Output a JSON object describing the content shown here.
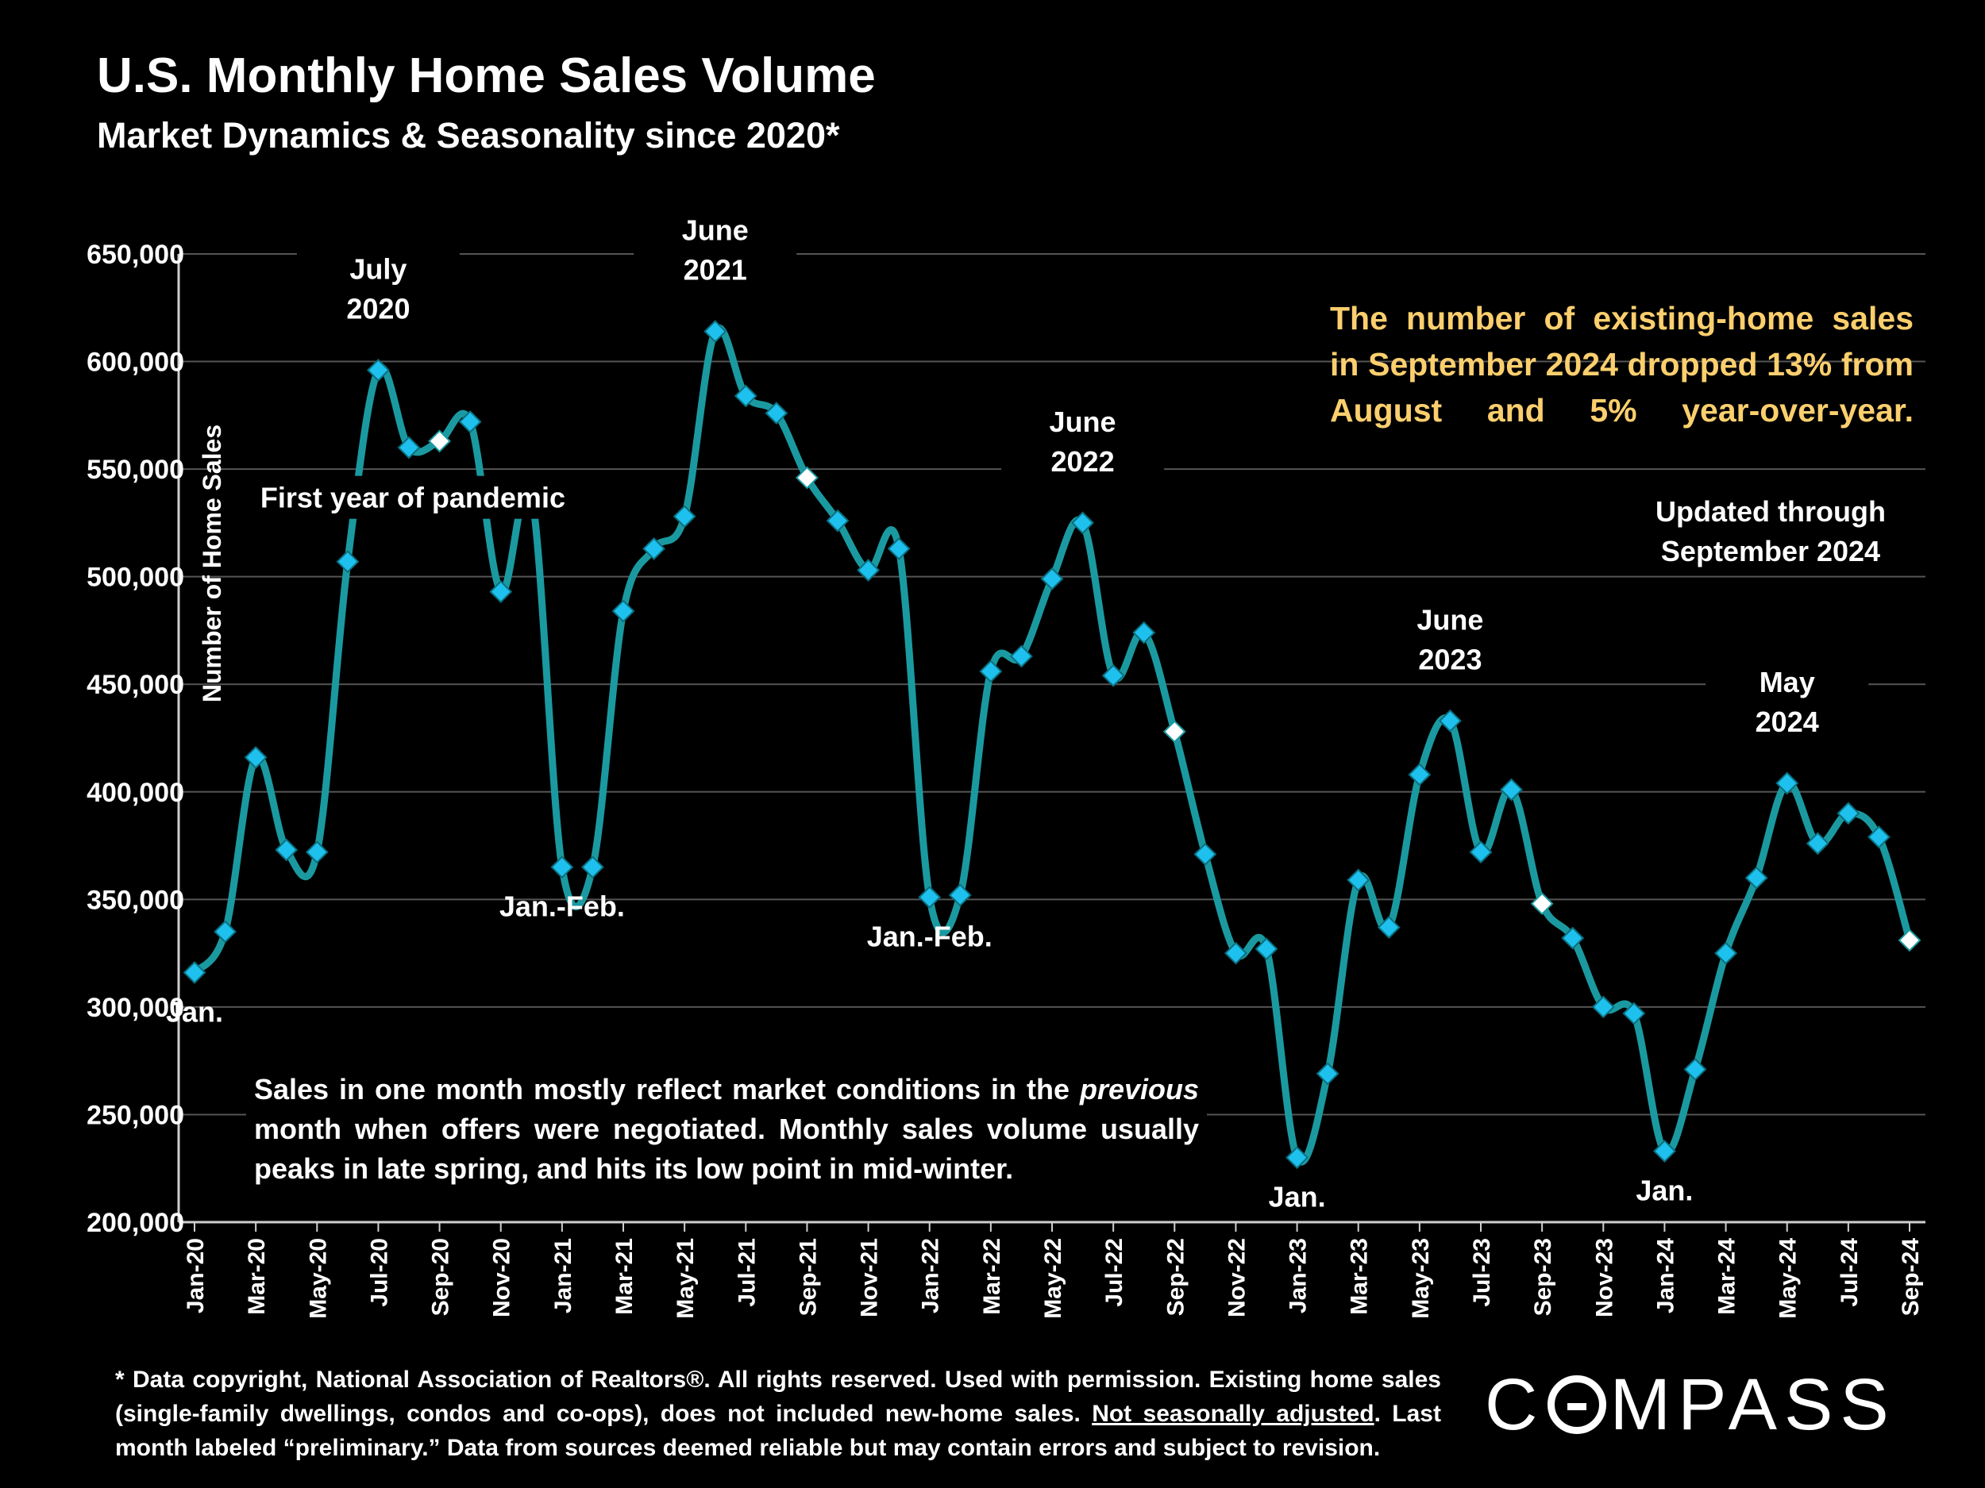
{
  "title": "U.S. Monthly Home Sales Volume",
  "subtitle": "Market Dynamics & Seasonality since 2020*",
  "callout": "The number of existing-home sales in September 2024 dropped 13% from August and 5% year-over-year.",
  "updated": "Updated through September 2024",
  "note": {
    "pre": "Sales in one month mostly reflect market conditions in the ",
    "em": "previous",
    "post": " month when offers were negotiated. Monthly sales volume usually peaks in late spring, and hits its low point in mid-winter."
  },
  "footnote": {
    "pre": "* Data copyright, National Association of Realtors®. All rights reserved. Used with permission. Existing home sales (single-family dwellings, condos and co-ops), does not included new-home sales. ",
    "underlined": "Not seasonally adjusted",
    "post": ". Last month labeled “preliminary.” Data from sources deemed reliable but may contain errors and subject to revision."
  },
  "logo": {
    "before": "C",
    "after": "MPASS"
  },
  "colors": {
    "line": "#1a9aa0",
    "marker": "#1ec0ee",
    "marker_highlight": "#ffffff",
    "callout": "#fbcf6d",
    "grid": "#555555"
  },
  "chart_data": {
    "type": "line",
    "ylabel": "Number of Home Sales",
    "ylim": [
      200000,
      650000
    ],
    "yticks": [
      "200,000",
      "250,000",
      "300,000",
      "350,000",
      "400,000",
      "450,000",
      "500,000",
      "550,000",
      "600,000",
      "650,000"
    ],
    "ytick_values": [
      200000,
      250000,
      300000,
      350000,
      400000,
      450000,
      500000,
      550000,
      600000,
      650000
    ],
    "x_tick_labels": [
      "Jan-20",
      "Mar-20",
      "May-20",
      "Jul-20",
      "Sep-20",
      "Nov-20",
      "Jan-21",
      "Mar-21",
      "May-21",
      "Jul-21",
      "Sep-21",
      "Nov-21",
      "Jan-22",
      "Mar-22",
      "May-22",
      "Jul-22",
      "Sep-22",
      "Nov-22",
      "Jan-23",
      "Mar-23",
      "May-23",
      "Jul-23",
      "Sep-23",
      "Nov-23",
      "Jan-24",
      "Mar-24",
      "May-24",
      "Jul-24",
      "Sep-24"
    ],
    "x": [
      "Jan-20",
      "Feb-20",
      "Mar-20",
      "Apr-20",
      "May-20",
      "Jun-20",
      "Jul-20",
      "Aug-20",
      "Sep-20",
      "Oct-20",
      "Nov-20",
      "Dec-20",
      "Jan-21",
      "Feb-21",
      "Mar-21",
      "Apr-21",
      "May-21",
      "Jun-21",
      "Jul-21",
      "Aug-21",
      "Sep-21",
      "Oct-21",
      "Nov-21",
      "Dec-21",
      "Jan-22",
      "Feb-22",
      "Mar-22",
      "Apr-22",
      "May-22",
      "Jun-22",
      "Jul-22",
      "Aug-22",
      "Sep-22",
      "Oct-22",
      "Nov-22",
      "Dec-22",
      "Jan-23",
      "Feb-23",
      "Mar-23",
      "Apr-23",
      "May-23",
      "Jun-23",
      "Jul-23",
      "Aug-23",
      "Sep-23",
      "Oct-23",
      "Nov-23",
      "Dec-23",
      "Jan-24",
      "Feb-24",
      "Mar-24",
      "Apr-24",
      "May-24",
      "Jun-24",
      "Jul-24",
      "Aug-24",
      "Sep-24"
    ],
    "values": [
      316000,
      335000,
      416000,
      373000,
      372000,
      507000,
      596000,
      560000,
      563000,
      572000,
      493000,
      538000,
      365000,
      365000,
      484000,
      513000,
      528000,
      614000,
      584000,
      576000,
      546000,
      526000,
      503000,
      513000,
      351000,
      352000,
      456000,
      463000,
      499000,
      525000,
      454000,
      474000,
      428000,
      371000,
      325000,
      327000,
      230000,
      269000,
      359000,
      337000,
      408000,
      433000,
      372000,
      401000,
      348000,
      332000,
      300000,
      297000,
      233000,
      271000,
      325000,
      360000,
      404000,
      376000,
      390000,
      379000,
      331000
    ],
    "highlighted_points": [
      "Sep-20",
      "Sep-21",
      "Sep-22",
      "Sep-23",
      "Sep-24"
    ],
    "annotations": [
      {
        "lines": [
          "Jan."
        ],
        "at": "Jan-20",
        "pos": "below"
      },
      {
        "lines": [
          "July",
          "2020"
        ],
        "at": "Jul-20",
        "pos": "above"
      },
      {
        "lines": [
          "First year of pandemic"
        ],
        "at": "Jun-20",
        "pos": "band"
      },
      {
        "lines": [
          "Jan.-Feb."
        ],
        "at": "Jan-21",
        "pos": "below"
      },
      {
        "lines": [
          "June",
          "2021"
        ],
        "at": "Jun-21",
        "pos": "above"
      },
      {
        "lines": [
          "Jan.-Feb."
        ],
        "at": "Jan-22",
        "pos": "below"
      },
      {
        "lines": [
          "June",
          "2022"
        ],
        "at": "Jun-22",
        "pos": "above"
      },
      {
        "lines": [
          "Jan."
        ],
        "at": "Jan-23",
        "pos": "below"
      },
      {
        "lines": [
          "June",
          "2023"
        ],
        "at": "Jun-23",
        "pos": "above"
      },
      {
        "lines": [
          "Jan."
        ],
        "at": "Jan-24",
        "pos": "below"
      },
      {
        "lines": [
          "May",
          "2024"
        ],
        "at": "May-24",
        "pos": "above"
      }
    ],
    "grid": true,
    "legend": "none"
  }
}
